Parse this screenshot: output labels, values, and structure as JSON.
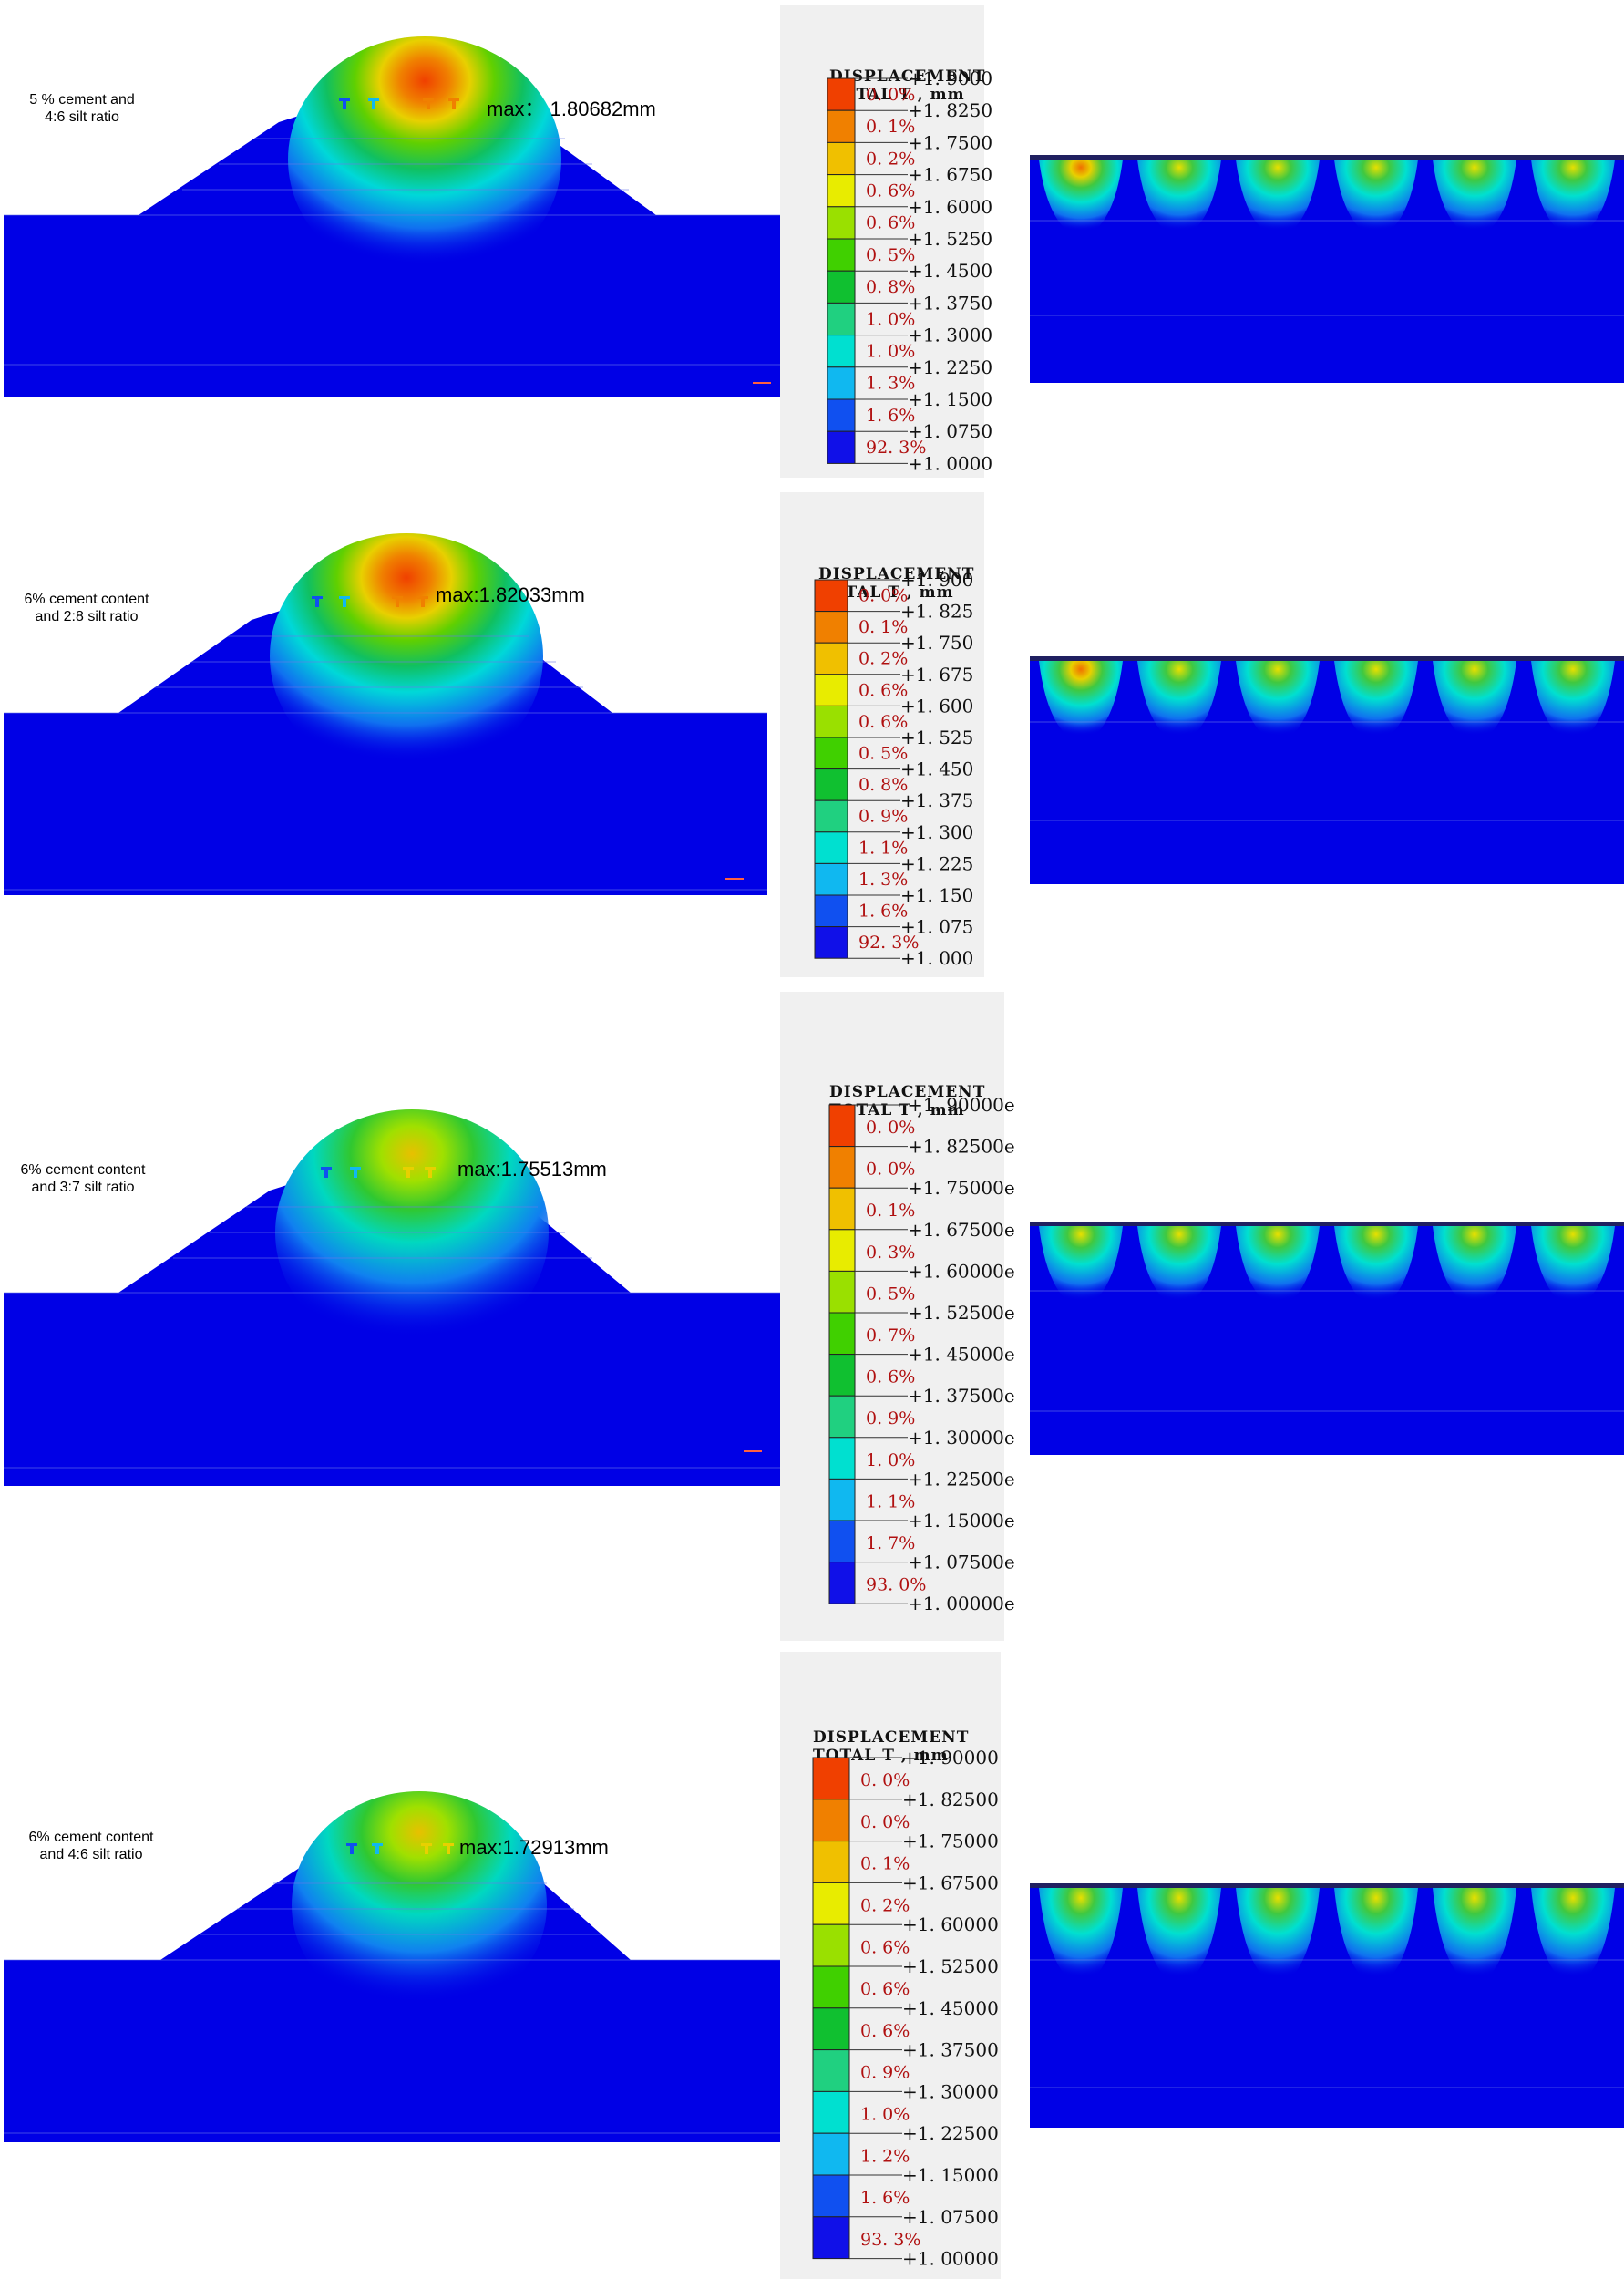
{
  "colors": {
    "background_blue": "#0000e6",
    "contour_scale": [
      "#ff0000",
      "#f04000",
      "#f08000",
      "#f0c000",
      "#e8ec00",
      "#9ae000",
      "#40d000",
      "#10c030",
      "#20d080",
      "#00e0d0",
      "#10b8f0",
      "#1050f0",
      "#1010e8"
    ]
  },
  "legend_title_line1": "DISPLACEMENT",
  "legend_title_line2": "TOTAL T , mm",
  "panels": [
    {
      "condition": [
        "5 % cement and",
        "4:6 silt ratio"
      ],
      "max": "max： 1.80682mm",
      "legend": {
        "ticks": [
          "+1. 9000",
          "+1. 8250",
          "+1. 7500",
          "+1. 6750",
          "+1. 6000",
          "+1. 5250",
          "+1. 4500",
          "+1. 3750",
          "+1. 3000",
          "+1. 2250",
          "+1. 1500",
          "+1. 0750",
          "+1. 0000"
        ],
        "percents": [
          "0. 0%",
          "0. 1%",
          "0. 2%",
          "0. 6%",
          "0. 6%",
          "0. 5%",
          "0. 8%",
          "1. 0%",
          "1. 0%",
          "1. 3%",
          "1. 6%",
          "92. 3%"
        ]
      }
    },
    {
      "condition": [
        "6% cement content",
        "and 2:8 silt ratio"
      ],
      "max": "max:1.82033mm",
      "legend": {
        "ticks": [
          "+1. 900",
          "+1. 825",
          "+1. 750",
          "+1. 675",
          "+1. 600",
          "+1. 525",
          "+1. 450",
          "+1. 375",
          "+1. 300",
          "+1. 225",
          "+1. 150",
          "+1. 075",
          "+1. 000"
        ],
        "percents": [
          "0. 0%",
          "0. 1%",
          "0. 2%",
          "0. 6%",
          "0. 6%",
          "0. 5%",
          "0. 8%",
          "0. 9%",
          "1. 1%",
          "1. 3%",
          "1. 6%",
          "92. 3%"
        ]
      }
    },
    {
      "condition": [
        "6% cement content",
        "and 3:7 silt ratio"
      ],
      "max": "max:1.75513mm",
      "legend": {
        "ticks": [
          "+1. 90000e",
          "+1. 82500e",
          "+1. 75000e",
          "+1. 67500e",
          "+1. 60000e",
          "+1. 52500e",
          "+1. 45000e",
          "+1. 37500e",
          "+1. 30000e",
          "+1. 22500e",
          "+1. 15000e",
          "+1. 07500e",
          "+1. 00000e"
        ],
        "percents": [
          "0. 0%",
          "0. 0%",
          "0. 1%",
          "0. 3%",
          "0. 5%",
          "0. 7%",
          "0. 6%",
          "0. 9%",
          "1. 0%",
          "1. 1%",
          "1. 7%",
          "93. 0%"
        ]
      }
    },
    {
      "condition": [
        "6% cement content",
        "and 4:6 silt ratio"
      ],
      "max": "max:1.72913mm",
      "legend": {
        "ticks": [
          "+1. 90000",
          "+1. 82500",
          "+1. 75000",
          "+1. 67500",
          "+1. 60000",
          "+1. 52500",
          "+1. 45000",
          "+1. 37500",
          "+1. 30000",
          "+1. 22500",
          "+1. 15000",
          "+1. 07500",
          "+1. 00000"
        ],
        "percents": [
          "0. 0%",
          "0. 0%",
          "0. 1%",
          "0. 2%",
          "0. 6%",
          "0. 6%",
          "0. 6%",
          "0. 9%",
          "1. 0%",
          "1. 2%",
          "1. 6%",
          "93. 3%"
        ]
      }
    }
  ]
}
